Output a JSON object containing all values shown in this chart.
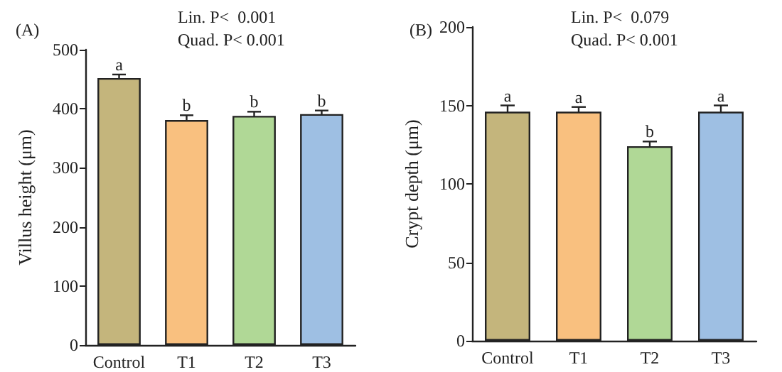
{
  "chart_data": [
    {
      "type": "bar",
      "title": "(A)",
      "ylabel": "Villus height (μm)",
      "categories": [
        "Control",
        "T1",
        "T2",
        "T3"
      ],
      "values": [
        452,
        381,
        388,
        391
      ],
      "errors": [
        6,
        8,
        7,
        6
      ],
      "colors": [
        "#c4b57c",
        "#f9c07f",
        "#b0d896",
        "#9ebfe3"
      ],
      "ylim": [
        0,
        500
      ],
      "yticks": [
        0,
        100,
        200,
        300,
        400,
        500
      ],
      "grid": false,
      "annotations": [
        "Lin. P<  0.001",
        "Quad. P< 0.001",
        {
          "text": "a",
          "x": "Control",
          "y": 458
        },
        {
          "text": "b",
          "x": "T1",
          "y": 389
        },
        {
          "text": "b",
          "x": "T2",
          "y": 395
        },
        {
          "text": "b",
          "x": "T3",
          "y": 397
        }
      ]
    },
    {
      "type": "bar",
      "title": "(B)",
      "ylabel": "Crypt depth (μm)",
      "categories": [
        "Control",
        "T1",
        "T2",
        "T3"
      ],
      "values": [
        146,
        146,
        124,
        146
      ],
      "errors": [
        4,
        3,
        3,
        4
      ],
      "colors": [
        "#c4b57c",
        "#f9c07f",
        "#b0d896",
        "#9ebfe3"
      ],
      "ylim": [
        0,
        200
      ],
      "yticks": [
        0,
        50,
        100,
        150,
        200
      ],
      "grid": false,
      "annotations": [
        "Lin. P<  0.079",
        "Quad. P< 0.001",
        {
          "text": "a",
          "x": "Control",
          "y": 150
        },
        {
          "text": "a",
          "x": "T1",
          "y": 149
        },
        {
          "text": "b",
          "x": "T2",
          "y": 127
        },
        {
          "text": "a",
          "x": "T3",
          "y": 150
        }
      ]
    }
  ]
}
